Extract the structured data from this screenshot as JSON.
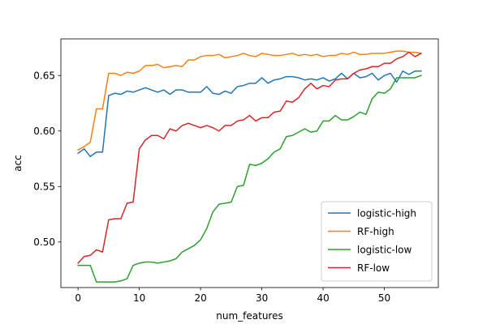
{
  "chart_data": {
    "type": "line",
    "title": "",
    "xlabel": "num_features",
    "ylabel": "acc",
    "xlim": [
      -2.8,
      58.8
    ],
    "ylim": [
      0.459,
      0.683
    ],
    "x_ticks": [
      0,
      10,
      20,
      30,
      40,
      50
    ],
    "y_ticks": [
      0.5,
      0.55,
      0.6,
      0.65
    ],
    "x_tick_labels": [
      "0",
      "10",
      "20",
      "30",
      "40",
      "50"
    ],
    "y_tick_labels": [
      "0.50",
      "0.55",
      "0.60",
      "0.65"
    ],
    "grid": false,
    "legend_position": "lower-right",
    "x": [
      0,
      1,
      2,
      3,
      4,
      5,
      6,
      7,
      8,
      9,
      10,
      11,
      12,
      13,
      14,
      15,
      16,
      17,
      18,
      19,
      20,
      21,
      22,
      23,
      24,
      25,
      26,
      27,
      28,
      29,
      30,
      31,
      32,
      33,
      34,
      35,
      36,
      37,
      38,
      39,
      40,
      41,
      42,
      43,
      44,
      45,
      46,
      47,
      48,
      49,
      50,
      51,
      52,
      53,
      54,
      55,
      56
    ],
    "series": [
      {
        "name": "logistic-high",
        "color": "#1f77b4",
        "values": [
          0.58,
          0.584,
          0.577,
          0.581,
          0.581,
          0.632,
          0.634,
          0.633,
          0.636,
          0.635,
          0.637,
          0.639,
          0.637,
          0.635,
          0.637,
          0.633,
          0.637,
          0.637,
          0.635,
          0.635,
          0.635,
          0.64,
          0.634,
          0.633,
          0.636,
          0.634,
          0.64,
          0.641,
          0.643,
          0.643,
          0.648,
          0.643,
          0.646,
          0.647,
          0.649,
          0.649,
          0.648,
          0.646,
          0.647,
          0.646,
          0.648,
          0.645,
          0.647,
          0.652,
          0.647,
          0.652,
          0.648,
          0.649,
          0.652,
          0.646,
          0.65,
          0.652,
          0.644,
          0.654,
          0.651,
          0.654,
          0.654
        ]
      },
      {
        "name": "RF-high",
        "color": "#ff7f0e",
        "values": [
          0.583,
          0.586,
          0.59,
          0.62,
          0.62,
          0.652,
          0.652,
          0.65,
          0.653,
          0.652,
          0.654,
          0.659,
          0.659,
          0.66,
          0.657,
          0.658,
          0.659,
          0.658,
          0.664,
          0.664,
          0.667,
          0.668,
          0.668,
          0.669,
          0.666,
          0.667,
          0.668,
          0.67,
          0.668,
          0.667,
          0.67,
          0.669,
          0.668,
          0.668,
          0.669,
          0.67,
          0.668,
          0.669,
          0.668,
          0.669,
          0.667,
          0.668,
          0.668,
          0.67,
          0.669,
          0.671,
          0.669,
          0.669,
          0.67,
          0.67,
          0.67,
          0.671,
          0.672,
          0.672,
          0.671,
          0.671,
          0.67
        ]
      },
      {
        "name": "logistic-low",
        "color": "#2ca02c",
        "values": [
          0.479,
          0.479,
          0.479,
          0.464,
          0.464,
          0.464,
          0.464,
          0.465,
          0.467,
          0.479,
          0.481,
          0.482,
          0.482,
          0.481,
          0.482,
          0.483,
          0.485,
          0.491,
          0.494,
          0.497,
          0.502,
          0.512,
          0.527,
          0.534,
          0.535,
          0.536,
          0.55,
          0.551,
          0.57,
          0.569,
          0.571,
          0.575,
          0.581,
          0.584,
          0.595,
          0.596,
          0.599,
          0.602,
          0.599,
          0.6,
          0.609,
          0.609,
          0.614,
          0.61,
          0.61,
          0.613,
          0.617,
          0.615,
          0.629,
          0.635,
          0.634,
          0.638,
          0.648,
          0.648,
          0.648,
          0.648,
          0.65
        ]
      },
      {
        "name": "RF-low",
        "color": "#d62728",
        "values": [
          0.481,
          0.487,
          0.488,
          0.493,
          0.491,
          0.52,
          0.521,
          0.521,
          0.535,
          0.536,
          0.584,
          0.592,
          0.596,
          0.596,
          0.593,
          0.602,
          0.6,
          0.605,
          0.607,
          0.605,
          0.603,
          0.605,
          0.603,
          0.6,
          0.605,
          0.605,
          0.609,
          0.61,
          0.614,
          0.609,
          0.612,
          0.612,
          0.617,
          0.618,
          0.627,
          0.626,
          0.63,
          0.638,
          0.643,
          0.638,
          0.641,
          0.64,
          0.646,
          0.647,
          0.647,
          0.652,
          0.655,
          0.656,
          0.658,
          0.658,
          0.661,
          0.661,
          0.665,
          0.667,
          0.671,
          0.667,
          0.67
        ]
      }
    ]
  }
}
